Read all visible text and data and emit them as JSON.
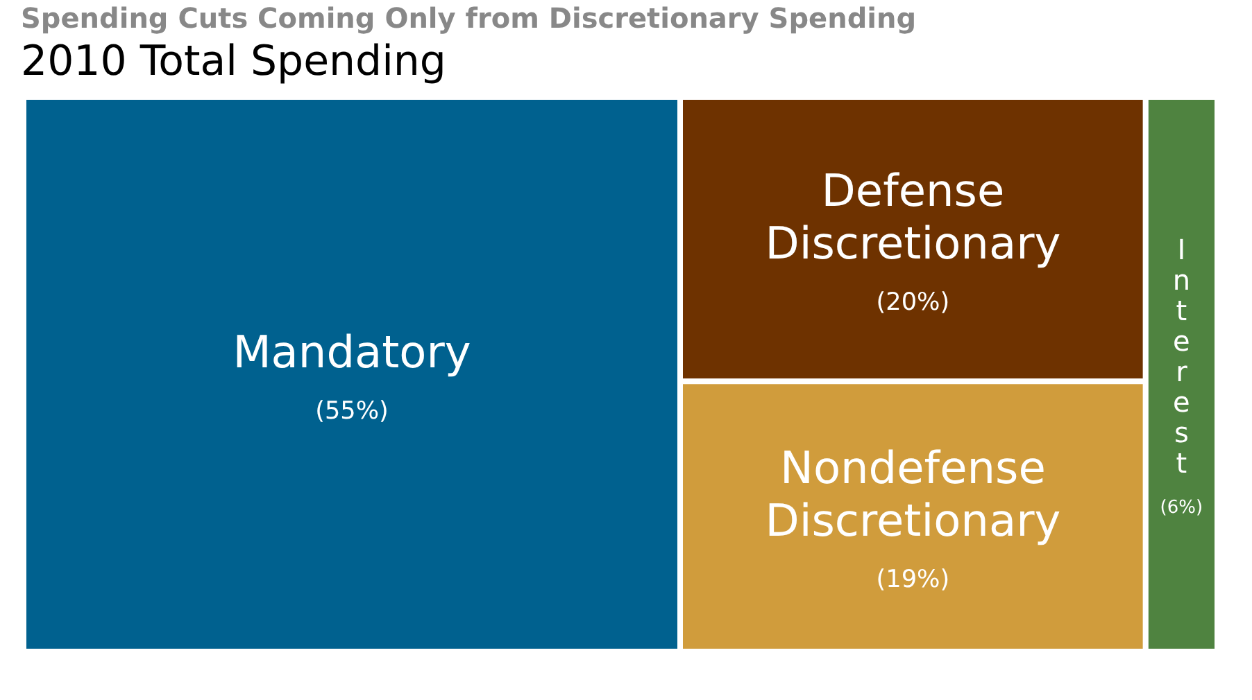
{
  "chart_data": {
    "type": "other",
    "title": "Spending Cuts Coming Only from Discretionary Spending",
    "subtitle": "2010 Total Spending",
    "categories": [
      "Mandatory",
      "Defense Discretionary",
      "Nondefense Discretionary",
      "Interest"
    ],
    "values": [
      55,
      20,
      19,
      6
    ],
    "value_labels": [
      "(55%)",
      "(20%)",
      "(19%)",
      "(6%)"
    ],
    "colors": [
      "#00618f",
      "#6e3200",
      "#d09c3c",
      "#4f8340"
    ]
  }
}
